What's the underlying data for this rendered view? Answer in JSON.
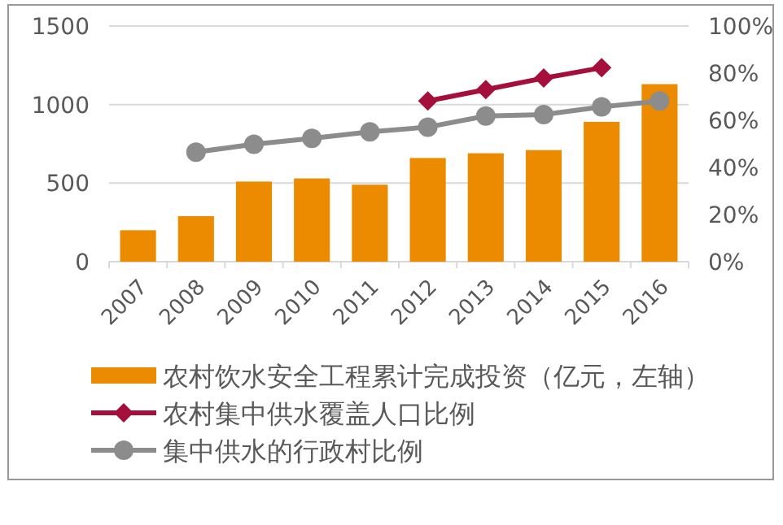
{
  "chart_data": {
    "type": "bar",
    "categories": [
      "2007",
      "2008",
      "2009",
      "2010",
      "2011",
      "2012",
      "2013",
      "2014",
      "2015",
      "2016"
    ],
    "series": [
      {
        "name": "农村饮水安全工程累计完成投资（亿元，左轴）",
        "color": "#ed8b00",
        "values": [
          200,
          290,
          510,
          530,
          490,
          660,
          690,
          710,
          890,
          1130
        ]
      },
      {
        "name": "农村集中供水覆盖人口比例",
        "type": "line",
        "axis": "y2",
        "marker": "diamond",
        "color": "#a50f3c",
        "values": [
          null,
          null,
          null,
          null,
          null,
          68.2,
          73.0,
          77.9,
          82.3,
          null
        ]
      },
      {
        "name": "集中供水的行政村比例",
        "type": "line",
        "axis": "y2",
        "marker": "circle",
        "color": "#8c8c8c",
        "values": [
          null,
          46.5,
          49.8,
          52.3,
          55.1,
          57.1,
          61.8,
          62.4,
          65.7,
          68.2
        ]
      }
    ],
    "ylim": [
      0,
      1500
    ],
    "yticks": [
      0,
      500,
      1000,
      1500
    ],
    "y2lim": [
      0,
      100
    ],
    "y2ticks": [
      {
        "value": 0,
        "label": "0%"
      },
      {
        "value": 20,
        "label": "20%"
      },
      {
        "value": 40,
        "label": "40%"
      },
      {
        "value": 60,
        "label": "60%"
      },
      {
        "value": 80,
        "label": "80%"
      },
      {
        "value": 100,
        "label": "100%"
      }
    ],
    "grid": "y",
    "legend": "bottom"
  }
}
